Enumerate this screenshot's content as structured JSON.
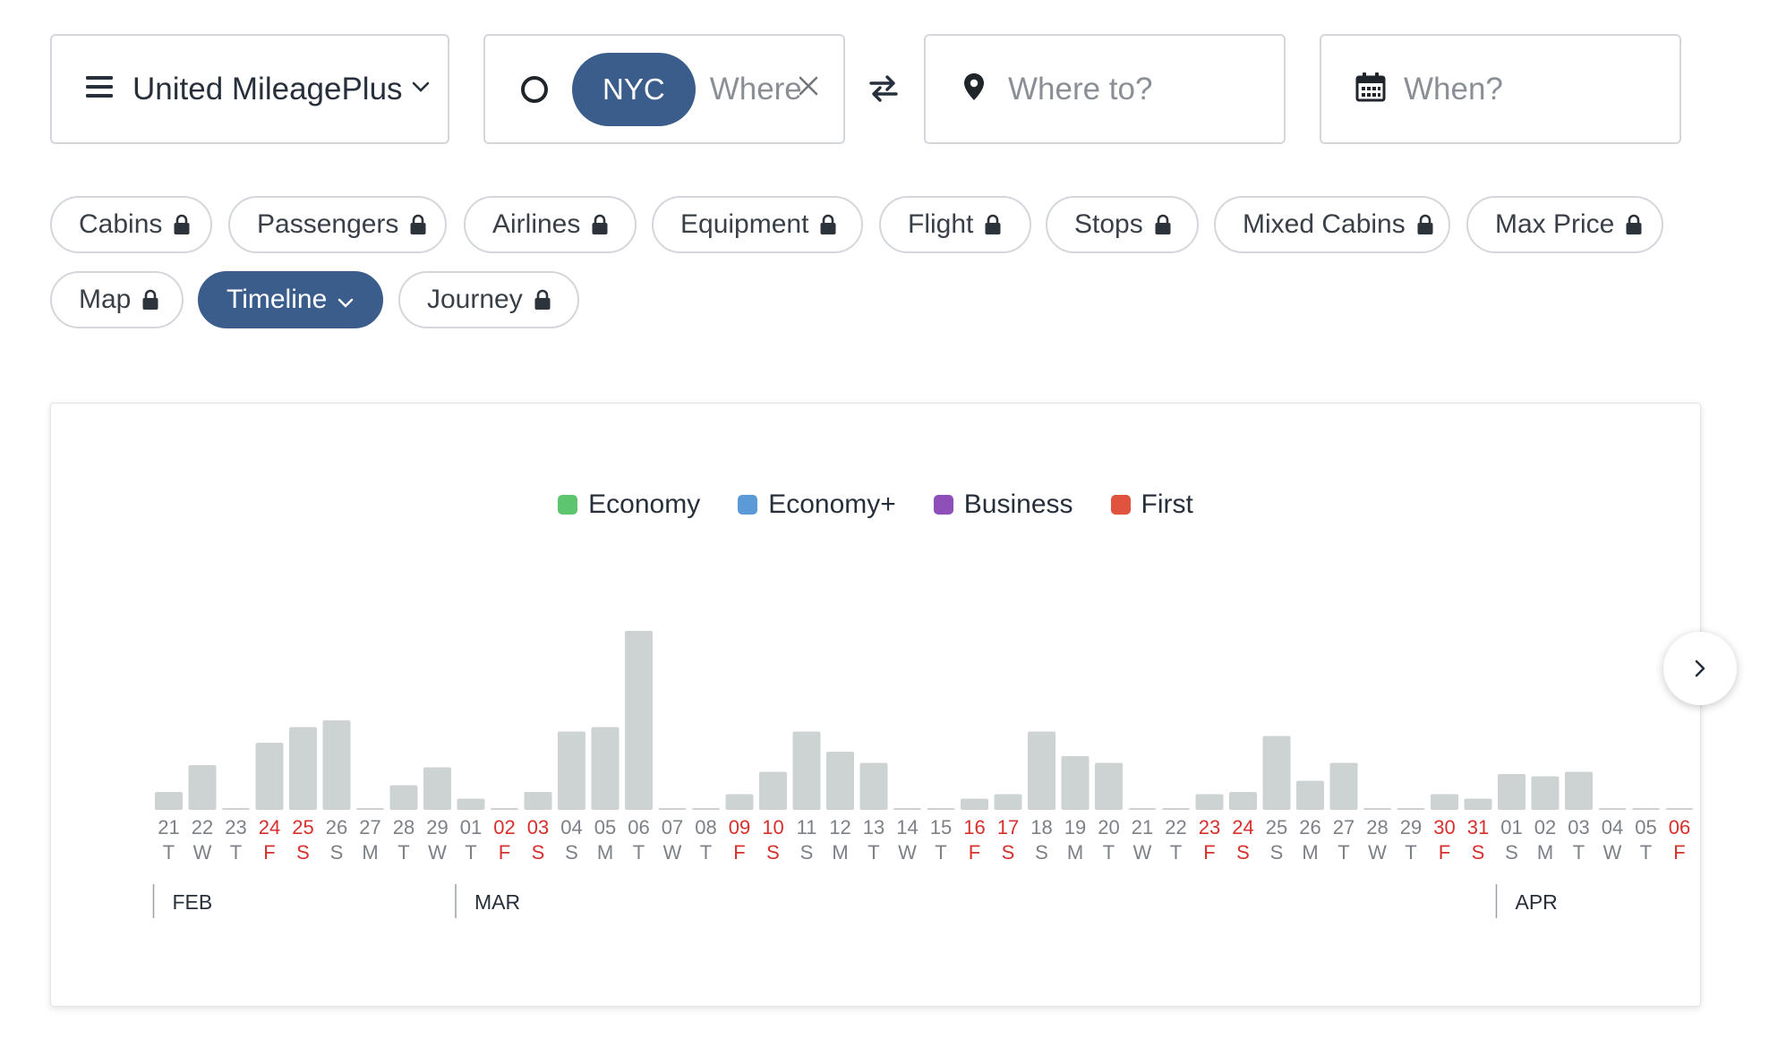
{
  "toolbar": {
    "program": {
      "label": "United MileagePlus",
      "icon": "menu-icon"
    },
    "origin": {
      "code": "NYC",
      "placeholder": "Where from?"
    },
    "destination": {
      "placeholder": "Where to?"
    },
    "date": {
      "placeholder": "When?"
    }
  },
  "filters": {
    "chips": [
      {
        "label": "Cabins",
        "locked": true
      },
      {
        "label": "Passengers",
        "locked": true
      },
      {
        "label": "Airlines",
        "locked": true
      },
      {
        "label": "Equipment",
        "locked": true
      },
      {
        "label": "Flight",
        "locked": true
      },
      {
        "label": "Stops",
        "locked": true
      },
      {
        "label": "Mixed Cabins",
        "locked": true
      },
      {
        "label": "Max Price",
        "locked": true
      }
    ],
    "views": [
      {
        "label": "Map",
        "locked": true
      },
      {
        "label": "Timeline",
        "active": true
      },
      {
        "label": "Journey",
        "locked": true
      }
    ]
  },
  "legend": [
    {
      "label": "Economy",
      "color": "#5dc56d"
    },
    {
      "label": "Economy+",
      "color": "#5b9ad6"
    },
    {
      "label": "Business",
      "color": "#8e4fb8"
    },
    {
      "label": "First",
      "color": "#e0533f"
    }
  ],
  "colors": {
    "accent": "#3b5d8c",
    "bar": "#cdd3d3",
    "weekend": "#d6302d",
    "weekday": "#7c8087"
  },
  "chart_data": {
    "type": "bar",
    "categories": [
      "21",
      "22",
      "23",
      "24",
      "25",
      "26",
      "27",
      "28",
      "29",
      "01",
      "02",
      "03",
      "04",
      "05",
      "06",
      "07",
      "08",
      "09",
      "10",
      "11",
      "12",
      "13",
      "14",
      "15",
      "16",
      "17",
      "18",
      "19",
      "20",
      "21",
      "22",
      "23",
      "24",
      "25",
      "26",
      "27",
      "28",
      "29",
      "30",
      "31",
      "01",
      "02",
      "03",
      "04",
      "05",
      "06"
    ],
    "weekdays": [
      "T",
      "W",
      "T",
      "F",
      "S",
      "S",
      "M",
      "T",
      "W",
      "T",
      "F",
      "S",
      "S",
      "M",
      "T",
      "W",
      "T",
      "F",
      "S",
      "S",
      "M",
      "T",
      "W",
      "T",
      "F",
      "S",
      "S",
      "M",
      "T",
      "W",
      "T",
      "F",
      "S",
      "S",
      "M",
      "T",
      "W",
      "T",
      "F",
      "S",
      "S",
      "M",
      "T",
      "W",
      "T",
      "F"
    ],
    "weekend_flags": [
      false,
      false,
      false,
      true,
      true,
      false,
      false,
      false,
      false,
      false,
      true,
      true,
      false,
      false,
      false,
      false,
      false,
      true,
      true,
      false,
      false,
      false,
      false,
      false,
      true,
      true,
      false,
      false,
      false,
      false,
      false,
      true,
      true,
      false,
      false,
      false,
      false,
      false,
      true,
      true,
      false,
      false,
      false,
      false,
      false,
      true
    ],
    "values": [
      8,
      20,
      0,
      30,
      37,
      40,
      0,
      11,
      19,
      5,
      0,
      8,
      35,
      37,
      80,
      0,
      0,
      7,
      17,
      35,
      26,
      21,
      0,
      0,
      5,
      7,
      35,
      24,
      21,
      0,
      0,
      7,
      8,
      33,
      13,
      21,
      0,
      0,
      7,
      5,
      16,
      15,
      17,
      0,
      0,
      0
    ],
    "months": [
      {
        "label": "FEB",
        "start_index": 0
      },
      {
        "label": "MAR",
        "start_index": 9
      },
      {
        "label": "APR",
        "start_index": 40
      }
    ]
  }
}
